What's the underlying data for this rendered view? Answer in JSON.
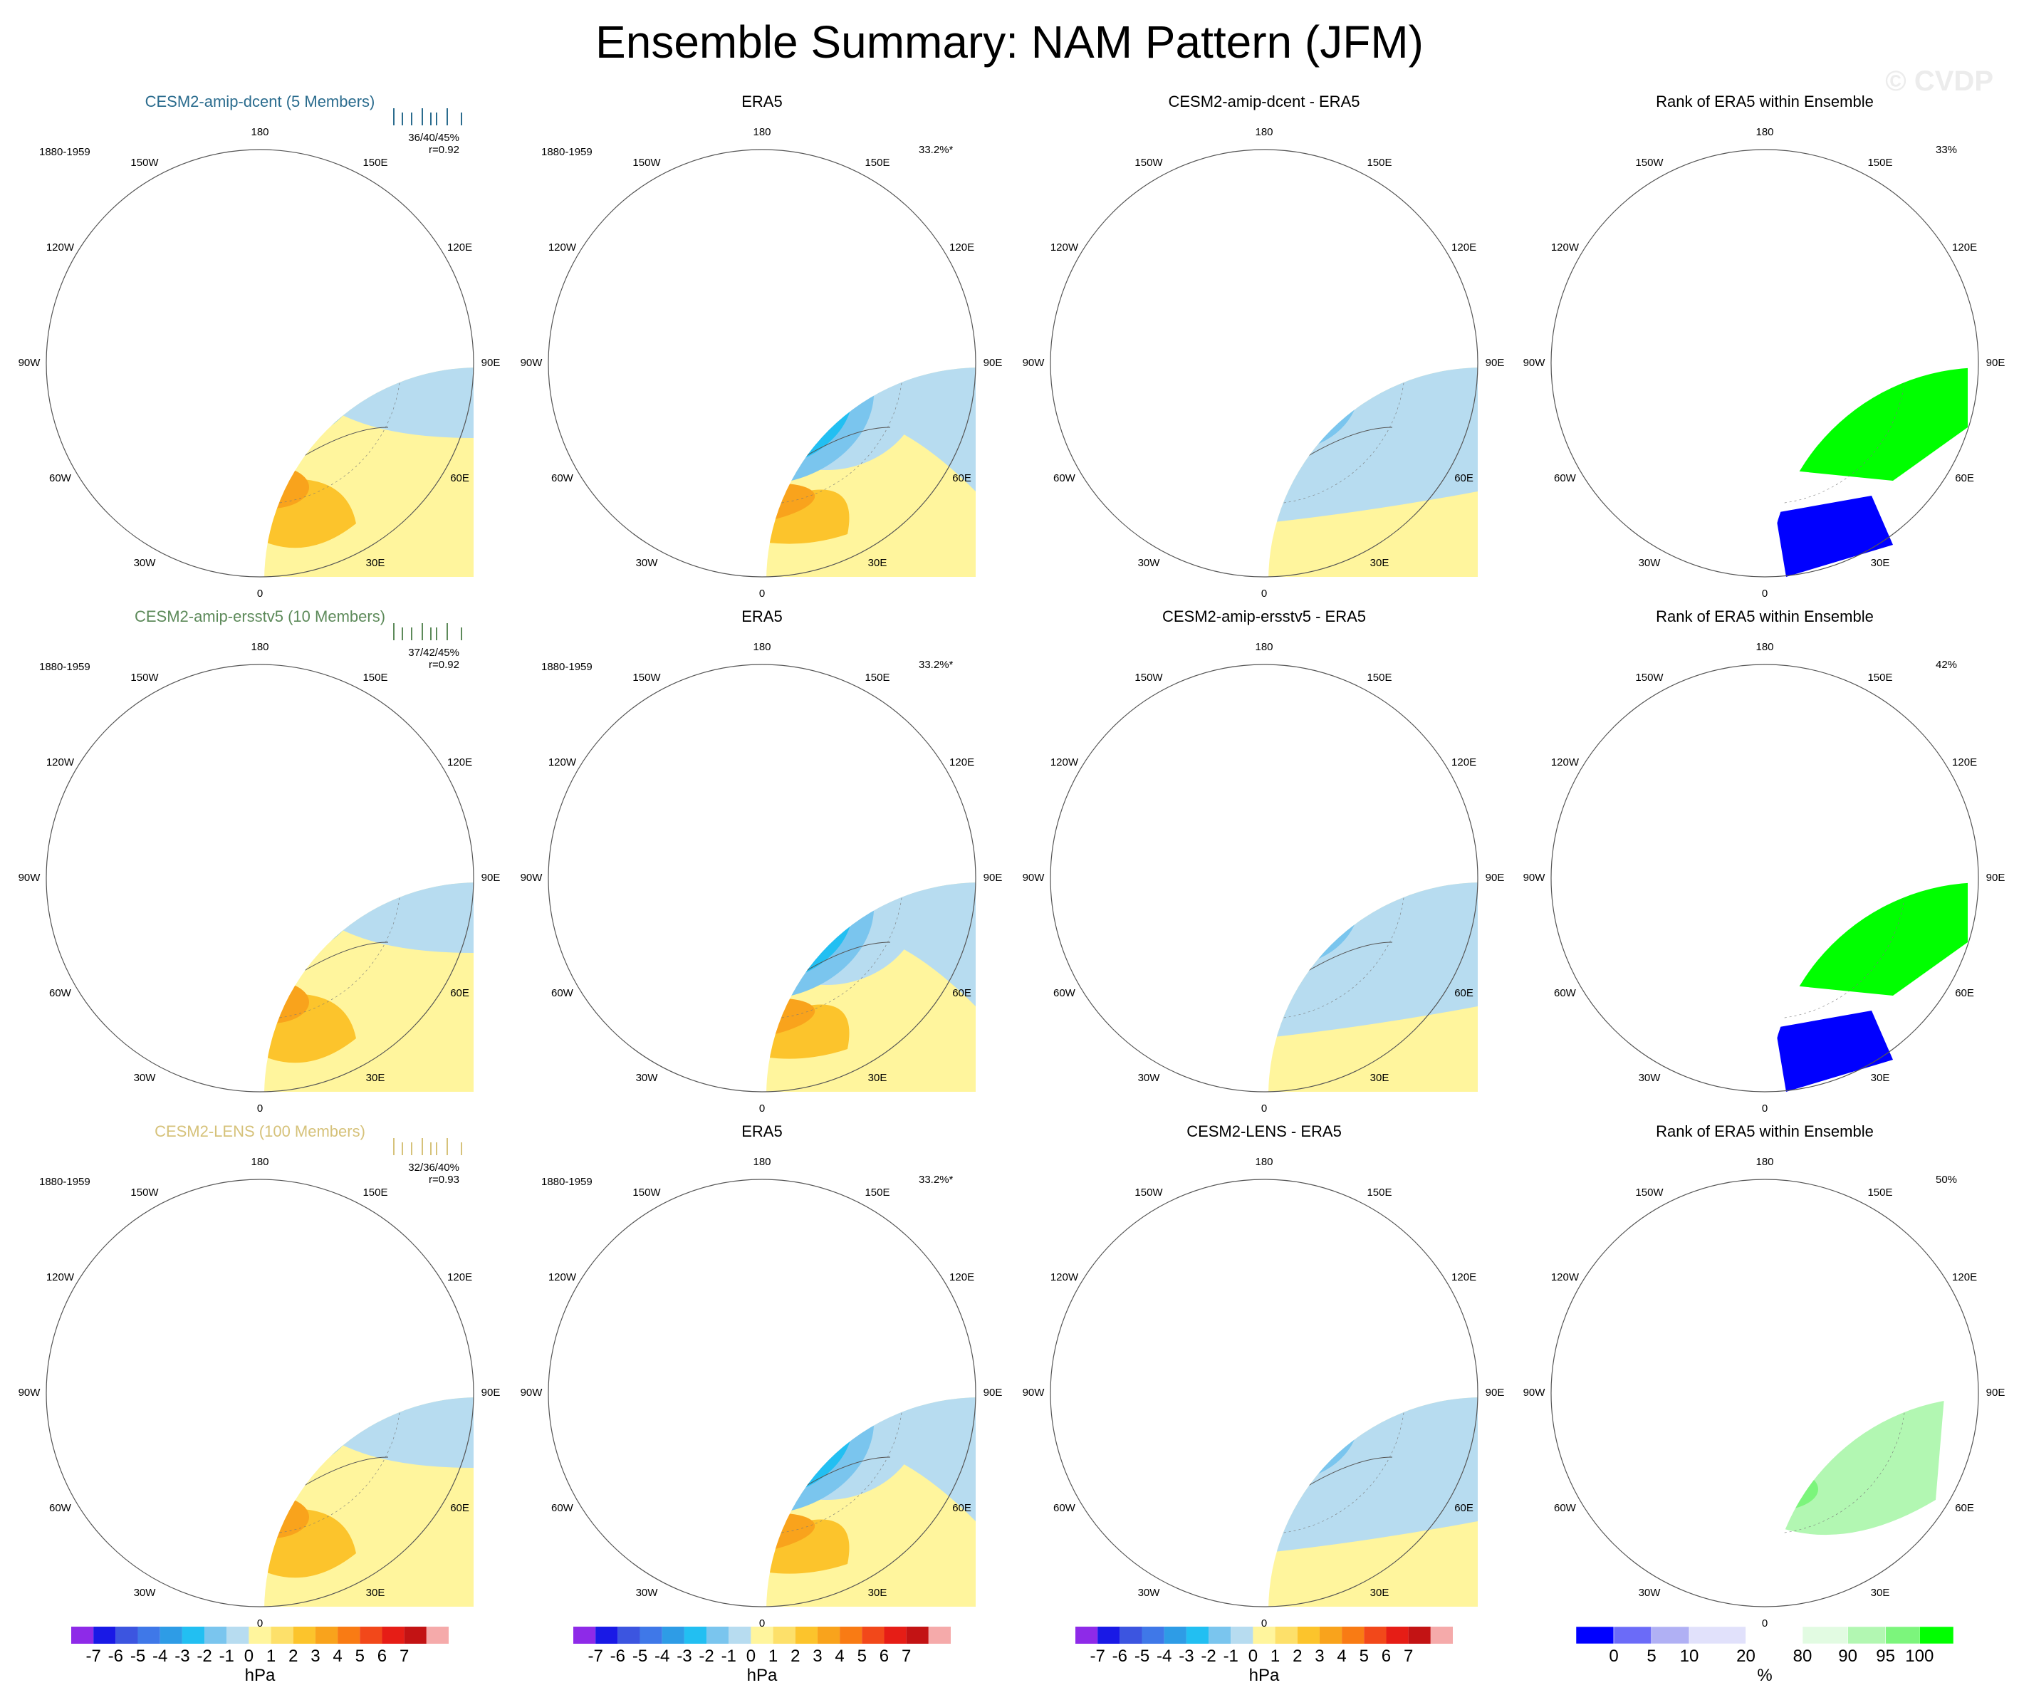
{
  "title": "Ensemble Summary: NAM Pattern (JFM)",
  "watermark": "© CVDP",
  "colors": {
    "hpa_scale": [
      "#8e2ae8",
      "#1919e6",
      "#3c55e0",
      "#3f78e8",
      "#2e9ce6",
      "#22bff2",
      "#7ac5ee",
      "#b7dcf0",
      "#fff59d",
      "#fde06a",
      "#fcc42c",
      "#f9a31c",
      "#f97b14",
      "#f2481a",
      "#e61d16",
      "#c31314",
      "#f5aaaa"
    ],
    "rank_scale": [
      "#0000ff",
      "#6b6bf8",
      "#b0b0f4",
      "#e1e1fb",
      "#ffffff",
      "#e2fbe2",
      "#b2f7b2",
      "#7cf57c",
      "#00ff00"
    ]
  },
  "rows": [
    {
      "model_title": "CESM2-amip-dcent (5 Members)",
      "model_color": "#2b6c8e",
      "period": "1880-1959",
      "stats_pct": "36/40/45%",
      "stats_r": "r=0.92",
      "obs_title": "ERA5",
      "obs_pct": "33.2%*",
      "diff_title": "CESM2-amip-dcent - ERA5",
      "rank_title": "Rank of ERA5 within Ensemble",
      "rank_pct": "33%"
    },
    {
      "model_title": "CESM2-amip-ersstv5 (10 Members)",
      "model_color": "#5d8a5a",
      "period": "1880-1959",
      "stats_pct": "37/42/45%",
      "stats_r": "r=0.92",
      "obs_title": "ERA5",
      "obs_pct": "33.2%*",
      "diff_title": "CESM2-amip-ersstv5 - ERA5",
      "rank_title": "Rank of ERA5 within Ensemble",
      "rank_pct": "42%"
    },
    {
      "model_title": "CESM2-LENS (100 Members)",
      "model_color": "#d6c27a",
      "period": "1880-1959",
      "stats_pct": "32/36/40%",
      "stats_r": "r=0.93",
      "obs_title": "ERA5",
      "obs_pct": "33.2%*",
      "diff_title": "CESM2-LENS - ERA5",
      "rank_title": "Rank of ERA5 within Ensemble",
      "rank_pct": "50%"
    }
  ],
  "lon_labels": [
    "180",
    "150E",
    "120E",
    "90E",
    "60E",
    "30E",
    "0",
    "30W",
    "60W",
    "90W",
    "120W",
    "150W"
  ],
  "chart_data": {
    "type": "heatmap",
    "title": "Ensemble Summary: NAM Pattern (JFM)",
    "projection": "polar stereographic, Northern Hemisphere",
    "hpa_colorbar": {
      "ticks": [
        "-7",
        "-6",
        "-5",
        "-4",
        "-3",
        "-2",
        "-1",
        "0",
        "1",
        "2",
        "3",
        "4",
        "5",
        "6",
        "7"
      ],
      "unit": "hPa"
    },
    "rank_colorbar": {
      "ticks": [
        "0",
        "5",
        "10",
        "20",
        "80",
        "90",
        "95",
        "100"
      ],
      "unit": "%"
    },
    "panels": [
      {
        "row": 1,
        "col": 1,
        "title": "CESM2-amip-dcent (5 Members)",
        "period": "1880-1959",
        "pct": "36/40/45%",
        "r": 0.92
      },
      {
        "row": 1,
        "col": 2,
        "title": "ERA5",
        "period": "1880-1959",
        "pct": "33.2%*"
      },
      {
        "row": 1,
        "col": 3,
        "title": "CESM2-amip-dcent - ERA5"
      },
      {
        "row": 1,
        "col": 4,
        "title": "Rank of ERA5 within Ensemble",
        "pct": "33%"
      },
      {
        "row": 2,
        "col": 1,
        "title": "CESM2-amip-ersstv5 (10 Members)",
        "period": "1880-1959",
        "pct": "37/42/45%",
        "r": 0.92
      },
      {
        "row": 2,
        "col": 2,
        "title": "ERA5",
        "period": "1880-1959",
        "pct": "33.2%*"
      },
      {
        "row": 2,
        "col": 3,
        "title": "CESM2-amip-ersstv5 - ERA5"
      },
      {
        "row": 2,
        "col": 4,
        "title": "Rank of ERA5 within Ensemble",
        "pct": "42%"
      },
      {
        "row": 3,
        "col": 1,
        "title": "CESM2-LENS (100 Members)",
        "period": "1880-1959",
        "pct": "32/36/40%",
        "r": 0.93
      },
      {
        "row": 3,
        "col": 2,
        "title": "ERA5",
        "period": "1880-1959",
        "pct": "33.2%*"
      },
      {
        "row": 3,
        "col": 3,
        "title": "CESM2-LENS - ERA5"
      },
      {
        "row": 3,
        "col": 4,
        "title": "Rank of ERA5 within Ensemble",
        "pct": "50%"
      }
    ]
  }
}
